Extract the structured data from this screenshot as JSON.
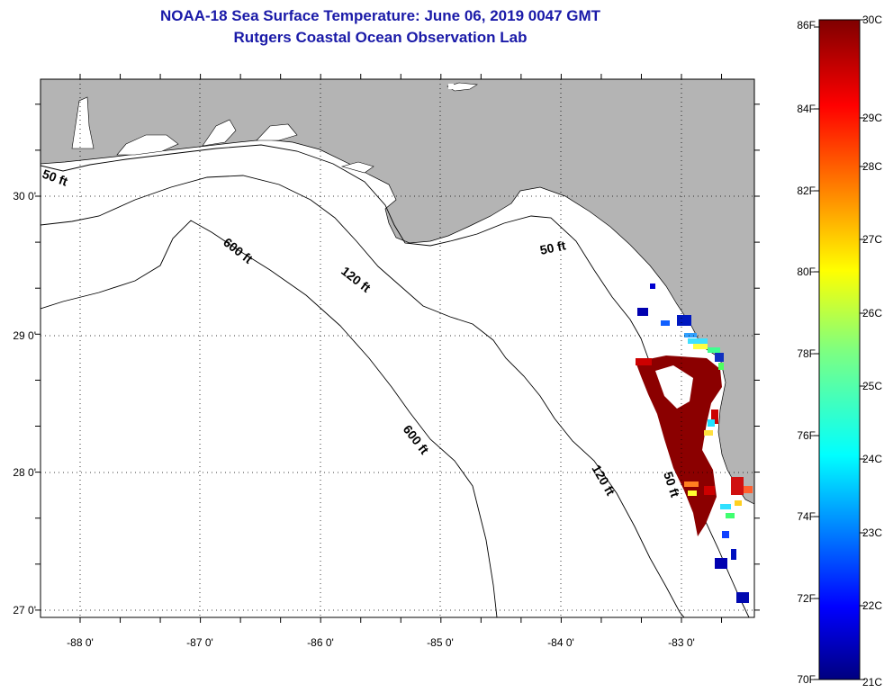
{
  "title": {
    "line1": "NOAA-18 Sea Surface Temperature:  June 06, 2019 0047 GMT",
    "line2": "Rutgers Coastal Ocean Observation Lab"
  },
  "map": {
    "lat_labels": [
      "30 0'",
      "29 0'",
      "28 0'",
      "27 0'"
    ],
    "lon_labels": [
      "-88 0'",
      "-87 0'",
      "-86 0'",
      "-85 0'",
      "-84 0'",
      "-83 0'"
    ],
    "contour_labels": {
      "c50_west": "50 ft",
      "c50_big_bend": "50 ft",
      "c50_south": "50 ft",
      "c120_north": "120 ft",
      "c120_south": "120 ft",
      "c600_north": "600 ft",
      "c600_south": "600 ft"
    },
    "colors": {
      "land": "#b4b4b4",
      "ocean": "#ffffff",
      "title": "#1a1aa8"
    }
  },
  "colorbar": {
    "f_labels": [
      "86F",
      "84F",
      "82F",
      "80F",
      "78F",
      "76F",
      "74F",
      "72F",
      "70F"
    ],
    "c_labels": [
      "30C",
      "29C",
      "28C",
      "27C",
      "26C",
      "25C",
      "24C",
      "23C",
      "22C",
      "21C"
    ]
  }
}
